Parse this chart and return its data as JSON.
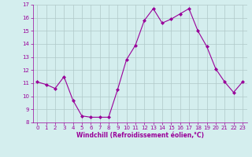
{
  "x": [
    0,
    1,
    2,
    3,
    4,
    5,
    6,
    7,
    8,
    9,
    10,
    11,
    12,
    13,
    14,
    15,
    16,
    17,
    18,
    19,
    20,
    21,
    22,
    23
  ],
  "y": [
    11.1,
    10.9,
    10.6,
    11.5,
    9.7,
    8.5,
    8.4,
    8.4,
    8.4,
    10.5,
    12.8,
    13.9,
    15.8,
    16.7,
    15.6,
    15.9,
    16.3,
    16.7,
    15.0,
    13.8,
    12.1,
    11.1,
    10.3,
    11.1
  ],
  "line_color": "#990099",
  "marker": "D",
  "marker_size": 2,
  "bg_color": "#d4eeee",
  "grid_color": "#b0c8c8",
  "xlabel": "Windchill (Refroidissement éolien,°C)",
  "xlabel_color": "#990099",
  "tick_color": "#990099",
  "ylim": [
    8,
    17
  ],
  "xlim": [
    -0.5,
    23.5
  ],
  "yticks": [
    8,
    9,
    10,
    11,
    12,
    13,
    14,
    15,
    16,
    17
  ],
  "xticks": [
    0,
    1,
    2,
    3,
    4,
    5,
    6,
    7,
    8,
    9,
    10,
    11,
    12,
    13,
    14,
    15,
    16,
    17,
    18,
    19,
    20,
    21,
    22,
    23
  ],
  "tick_fontsize": 5,
  "xlabel_fontsize": 5.5,
  "linewidth": 0.8
}
